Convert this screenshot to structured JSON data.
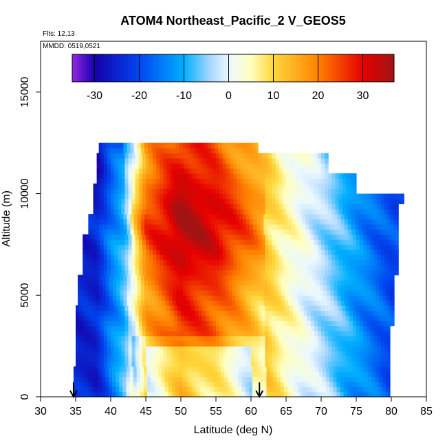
{
  "chart_data": {
    "type": "heatmap",
    "title": "ATOM4 Northeast_Pacific_2 V_GEOS5",
    "flights_note": "Flts: 12,13",
    "dates_note": "MMDD: 0519,0521",
    "xlabel": "Latitude (deg N)",
    "ylabel": "Altitude (m)",
    "xlim": [
      30,
      85
    ],
    "ylim": [
      0,
      17500
    ],
    "xticks": [
      "30",
      "35",
      "40",
      "45",
      "50",
      "55",
      "60",
      "65",
      "70",
      "75",
      "80",
      "85"
    ],
    "yticks": [
      "0",
      "5000",
      "10000",
      "15000"
    ],
    "colorbar": {
      "min": -35,
      "max": 37,
      "ticks": [
        "-30",
        "-20",
        "-10",
        "0",
        "10",
        "20",
        "30"
      ]
    },
    "arrows_latitude": [
      34.7,
      61.2
    ],
    "field_profile_by_latitude": [
      {
        "lat": 38,
        "value": -25
      },
      {
        "lat": 40,
        "value": -15
      },
      {
        "lat": 42,
        "value": -8
      },
      {
        "lat": 45,
        "value": 18
      },
      {
        "lat": 50,
        "value": 30
      },
      {
        "lat": 55,
        "value": 26
      },
      {
        "lat": 60,
        "value": 16
      },
      {
        "lat": 65,
        "value": 5
      },
      {
        "lat": 70,
        "value": -3
      },
      {
        "lat": 75,
        "value": -12
      },
      {
        "lat": 80,
        "value": -20
      }
    ],
    "grid": false
  }
}
